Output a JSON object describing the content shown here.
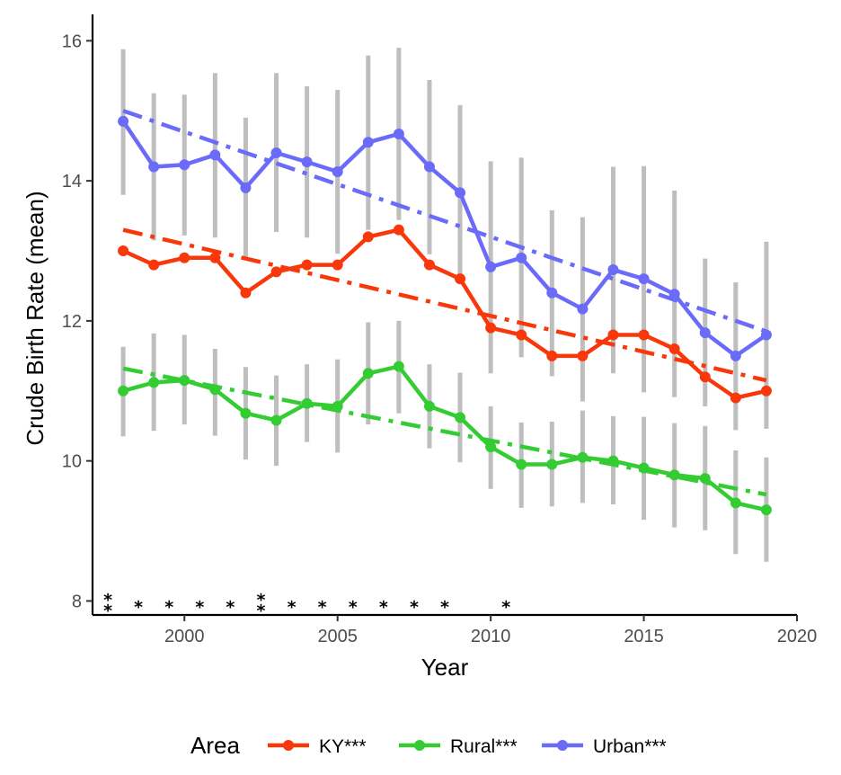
{
  "chart_data": {
    "type": "line",
    "xlabel": "Year",
    "ylabel": "Crude Birth Rate  (mean)",
    "xlim": [
      1997,
      2020
    ],
    "ylim": [
      7.8,
      16.3
    ],
    "x_ticks": [
      2000,
      2005,
      2010,
      2015,
      2020
    ],
    "y_ticks": [
      8,
      10,
      12,
      14,
      16
    ],
    "grid": false,
    "legend_title": "Area",
    "legend_position": "bottom",
    "x": [
      1998,
      1999,
      2000,
      2001,
      2002,
      2003,
      2004,
      2005,
      2006,
      2007,
      2008,
      2009,
      2010,
      2011,
      2012,
      2013,
      2014,
      2015,
      2016,
      2017,
      2018,
      2019
    ],
    "series": [
      {
        "name": "KY***",
        "color": "#f8380a",
        "values": [
          13.0,
          12.8,
          12.9,
          12.9,
          12.4,
          12.7,
          12.8,
          12.8,
          13.2,
          13.3,
          12.8,
          12.6,
          11.9,
          11.8,
          11.5,
          11.5,
          11.8,
          11.8,
          11.6,
          11.2,
          10.9,
          11.0
        ],
        "trend": [
          13.3,
          11.15
        ],
        "error_bars": null
      },
      {
        "name": "Rural***",
        "color": "#33cc33",
        "values": [
          11.0,
          11.12,
          11.15,
          11.02,
          10.68,
          10.58,
          10.82,
          10.78,
          11.25,
          11.35,
          10.78,
          10.62,
          10.2,
          9.95,
          9.95,
          10.05,
          10.0,
          9.9,
          9.8,
          9.75,
          9.4,
          9.3
        ],
        "trend": [
          11.32,
          9.52
        ],
        "error_bars": {
          "lower": [
            10.35,
            10.43,
            10.52,
            10.36,
            10.02,
            9.93,
            10.27,
            10.12,
            10.52,
            10.68,
            10.18,
            9.98,
            9.6,
            9.33,
            9.35,
            9.4,
            9.38,
            9.16,
            9.05,
            9.01,
            8.67,
            8.56
          ],
          "upper": [
            11.63,
            11.82,
            11.8,
            11.6,
            11.34,
            11.22,
            11.38,
            11.45,
            11.98,
            12.0,
            11.38,
            11.26,
            10.78,
            10.55,
            10.56,
            10.72,
            10.64,
            10.63,
            10.54,
            10.5,
            10.15,
            10.05
          ]
        }
      },
      {
        "name": "Urban***",
        "color": "#6b6bfa",
        "values": [
          14.85,
          14.2,
          14.23,
          14.37,
          13.9,
          14.4,
          14.27,
          14.13,
          14.55,
          14.67,
          14.2,
          13.83,
          12.77,
          12.9,
          12.4,
          12.17,
          12.73,
          12.6,
          12.38,
          11.83,
          11.5,
          11.8
        ],
        "trend": [
          15.0,
          11.85
        ],
        "error_bars": {
          "lower": [
            13.8,
            13.15,
            13.22,
            13.19,
            12.89,
            13.27,
            13.19,
            12.96,
            13.3,
            13.44,
            12.95,
            12.57,
            11.25,
            11.48,
            11.21,
            10.85,
            11.25,
            10.98,
            10.91,
            10.78,
            10.44,
            10.46
          ],
          "upper": [
            15.88,
            15.25,
            15.23,
            15.54,
            14.9,
            15.54,
            15.35,
            15.3,
            15.79,
            15.9,
            15.44,
            15.08,
            14.28,
            14.33,
            13.58,
            13.48,
            14.2,
            14.21,
            13.86,
            12.89,
            12.55,
            13.13
          ]
        }
      }
    ],
    "significance_marks": [
      {
        "x": 1997.5,
        "label": "**"
      },
      {
        "x": 1998.5,
        "label": "*"
      },
      {
        "x": 1999.5,
        "label": "*"
      },
      {
        "x": 2000.5,
        "label": "*"
      },
      {
        "x": 2001.5,
        "label": "*"
      },
      {
        "x": 2002.5,
        "label": "**"
      },
      {
        "x": 2003.5,
        "label": "*"
      },
      {
        "x": 2004.5,
        "label": "*"
      },
      {
        "x": 2005.5,
        "label": "*"
      },
      {
        "x": 2006.5,
        "label": "*"
      },
      {
        "x": 2007.5,
        "label": "*"
      },
      {
        "x": 2008.5,
        "label": "*"
      },
      {
        "x": 2010.5,
        "label": "*"
      }
    ],
    "significance_y": 8,
    "error_bar_color": "#bebebe"
  }
}
